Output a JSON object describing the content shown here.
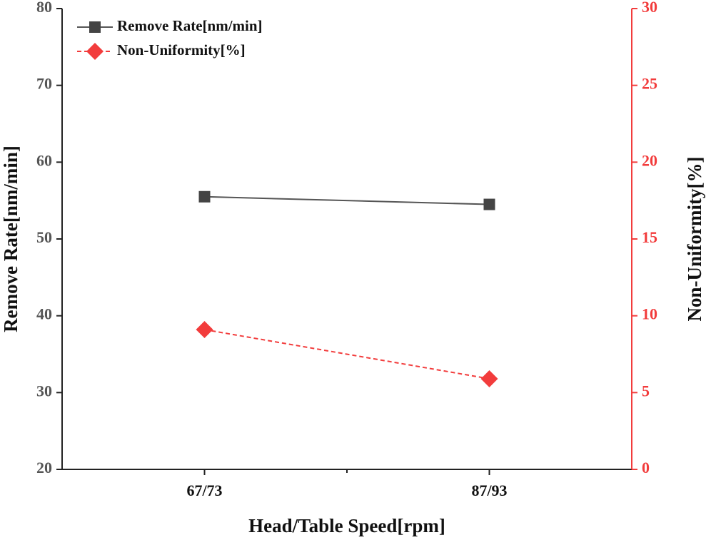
{
  "chart_data": {
    "type": "line",
    "x_label": "Head/Table Speed[rpm]",
    "y_label": "Remove Rate[nm/min]",
    "y2_label": "Non-Uniformity[%]",
    "categories": [
      "67/73",
      "87/93"
    ],
    "series": [
      {
        "name": "Remove Rate[nm/min]",
        "color": "#444444",
        "line_color": "#555555",
        "marker": "square",
        "dash": false,
        "values": [
          55.5,
          54.5
        ]
      },
      {
        "name": "Non-Uniformity[%]",
        "color": "#f23c3c",
        "line_color": "#f23c3c",
        "marker": "diamond",
        "dash": true,
        "axis": "y2",
        "values": [
          9.1,
          5.9
        ]
      }
    ],
    "ylim": [
      20,
      80
    ],
    "yticks": [
      20,
      30,
      40,
      50,
      60,
      70,
      80
    ],
    "y2lim": [
      0,
      30
    ],
    "y2ticks": [
      0,
      5,
      10,
      15,
      20,
      25,
      30
    ],
    "y_color": "#555555",
    "y2_color": "#f23c3c",
    "legend": "upper left",
    "grid": false
  }
}
